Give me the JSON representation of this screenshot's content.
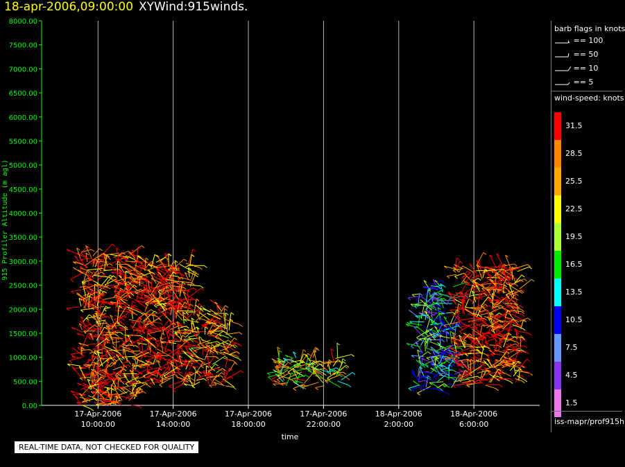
{
  "header": {
    "datetime": "18-apr-2006,09:00:00",
    "product": "XYWind:915winds."
  },
  "chart_data": {
    "type": "scatter",
    "ylabel": "915 Profiler Altitude (m agl)",
    "xlabel": "time",
    "ylim": [
      0,
      8000
    ],
    "yticks": [
      "8000.00",
      "7500.00",
      "7000.00",
      "6500.00",
      "6000.00",
      "5500.00",
      "5000.00",
      "4500.00",
      "4000.00",
      "3500.00",
      "3000.00",
      "2500.00",
      "2000.00",
      "1500.00",
      "1000.00",
      "500.00",
      "0.00"
    ],
    "xticks": [
      {
        "date": "17-Apr-2006",
        "time": "10:00:00"
      },
      {
        "date": "17-Apr-2006",
        "time": "14:00:00"
      },
      {
        "date": "17-Apr-2006",
        "time": "18:00:00"
      },
      {
        "date": "17-Apr-2006",
        "time": "22:00:00"
      },
      {
        "date": "18-Apr-2006",
        "time": "2:00:00"
      },
      {
        "date": "18-Apr-2006",
        "time": "6:00:00"
      }
    ],
    "series": [
      {
        "time_range": [
          "2006-04-17 09:00",
          "2006-04-17 12:00"
        ],
        "altitude_range": [
          0,
          3200
        ],
        "speed": "mixed",
        "dominant_speed_knots": 31.5
      },
      {
        "time_range": [
          "2006-04-17 12:00",
          "2006-04-17 15:00"
        ],
        "altitude_range": [
          400,
          3000
        ],
        "speed": "mixed",
        "dominant_speed_knots": 31.5
      },
      {
        "time_range": [
          "2006-04-17 15:00",
          "2006-04-17 17:00"
        ],
        "altitude_range": [
          400,
          2000
        ],
        "speed": "mixed",
        "dominant_speed_knots": 28.5
      },
      {
        "time_range": [
          "2006-04-17 19:30",
          "2006-04-17 23:00"
        ],
        "altitude_range": [
          400,
          1000
        ],
        "speed": "mixed",
        "dominant_speed_knots": 22.5
      },
      {
        "time_range": [
          "2006-04-18 03:00",
          "2006-04-18 05:00"
        ],
        "altitude_range": [
          300,
          2500
        ],
        "speed": "mixed",
        "dominant_speed_knots": 13.5
      },
      {
        "time_range": [
          "2006-04-18 05:00",
          "2006-04-18 08:30"
        ],
        "altitude_range": [
          400,
          2900
        ],
        "speed": "mixed",
        "dominant_speed_knots": 31.5
      }
    ],
    "grid": "vertical"
  },
  "legend": {
    "barb_title": "barb flags in knots",
    "barbs": [
      {
        "label": "== 100",
        "icon": "barb-pennant-icon"
      },
      {
        "label": "== 50",
        "icon": "barb-flag-icon"
      },
      {
        "label": "== 10",
        "icon": "barb-full-icon"
      },
      {
        "label": "== 5",
        "icon": "barb-half-icon"
      }
    ],
    "speed_title": "wind-speed: knots",
    "speeds": [
      {
        "label": "31.5",
        "color": "#ff0000"
      },
      {
        "label": "28.5",
        "color": "#ff8800"
      },
      {
        "label": "25.5",
        "color": "#ffaa00"
      },
      {
        "label": "22.5",
        "color": "#ffff00"
      },
      {
        "label": "19.5",
        "color": "#aaff33"
      },
      {
        "label": "16.5",
        "color": "#00ee00"
      },
      {
        "label": "13.5",
        "color": "#00ffff"
      },
      {
        "label": "10.5",
        "color": "#0000ff"
      },
      {
        "label": "7.5",
        "color": "#6699ff"
      },
      {
        "label": "4.5",
        "color": "#8833ee"
      },
      {
        "label": "1.5",
        "color": "#ee77ee"
      }
    ],
    "source": "iss-mapr/prof915h"
  },
  "notice": "REAL-TIME DATA, NOT CHECKED FOR QUALITY"
}
